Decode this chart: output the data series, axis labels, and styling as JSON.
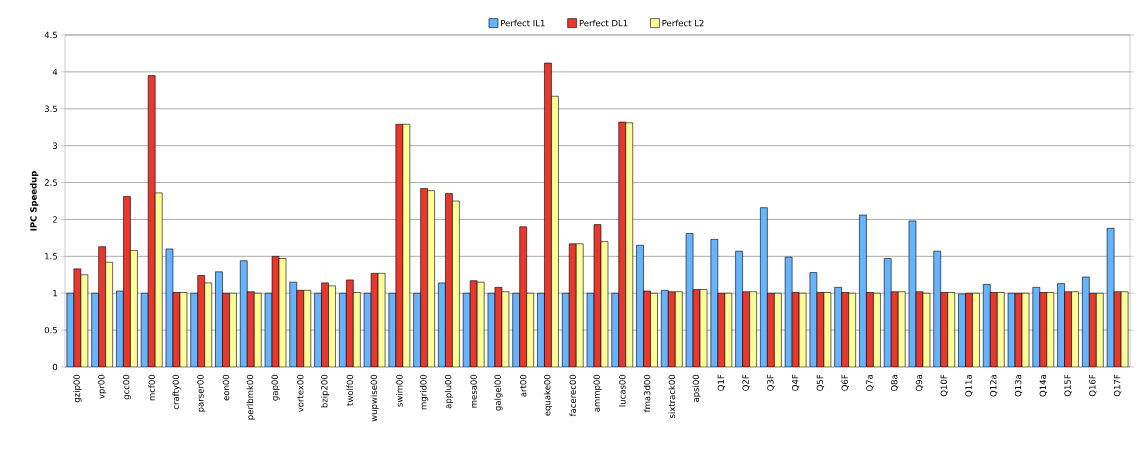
{
  "chart_data": {
    "type": "bar",
    "ylabel": "IPC Speedup",
    "categories": [
      "gzip00",
      "vpr00",
      "gcc00",
      "mcf00",
      "crafty00",
      "parser00",
      "eon00",
      "perlbmk00",
      "gap00",
      "vortex00",
      "bzip200",
      "twolf00",
      "wupwise00",
      "swim00",
      "mgrid00",
      "applu00",
      "mesa00",
      "galgel00",
      "art00",
      "equake00",
      "facerec00",
      "ammp00",
      "lucas00",
      "fma3d00",
      "sixtrack00",
      "apsi00",
      "Q1F",
      "Q2F",
      "Q3F",
      "Q4F",
      "Q5F",
      "Q6F",
      "Q7a",
      "Q8a",
      "Q9a",
      "Q10F",
      "Q11a",
      "Q12a",
      "Q13a",
      "Q14a",
      "Q15F",
      "Q16F",
      "Q17F"
    ],
    "series": [
      {
        "name": "Perfect IL1",
        "color": "#66b3ff",
        "values": [
          1,
          1,
          1.03,
          1,
          1.6,
          1,
          1.29,
          1.44,
          1,
          1.15,
          1,
          1,
          1,
          1,
          1,
          1.14,
          1,
          1,
          1,
          1,
          1,
          1,
          1,
          1.65,
          1.04,
          1.81,
          1.73,
          1.57,
          2.16,
          1.49,
          1.28,
          1.08,
          2.06,
          1.47,
          1.98,
          1.57,
          0.99,
          1.12,
          1,
          1.08,
          1.13,
          1.22,
          1.88
        ]
      },
      {
        "name": "Perfect DL1",
        "color": "#e8382e",
        "values": [
          1.33,
          1.63,
          2.31,
          3.95,
          1.01,
          1.24,
          1,
          1.02,
          1.5,
          1.04,
          1.14,
          1.18,
          1.27,
          3.29,
          2.42,
          2.35,
          1.17,
          1.08,
          1.9,
          4.12,
          1.67,
          1.93,
          3.32,
          1.03,
          1.02,
          1.05,
          1,
          1.02,
          1,
          1.01,
          1.01,
          1.01,
          1.01,
          1.02,
          1.02,
          1.01,
          1,
          1.01,
          1,
          1.01,
          1.02,
          1,
          1.02
        ]
      },
      {
        "name": "Perfect L2",
        "color": "#ffff99",
        "values": [
          1.25,
          1.42,
          1.58,
          2.36,
          1.01,
          1.14,
          1,
          1,
          1.47,
          1.04,
          1.1,
          1.01,
          1.27,
          3.29,
          2.39,
          2.25,
          1.15,
          1.02,
          1,
          3.67,
          1.67,
          1.7,
          3.31,
          1,
          1.02,
          1.05,
          1,
          1.02,
          1,
          1,
          1.01,
          1,
          1,
          1.02,
          1,
          1.01,
          1,
          1.01,
          1,
          1.01,
          1.02,
          1,
          1.02
        ]
      }
    ],
    "ylim": [
      0,
      4.5
    ],
    "yticks": [
      0,
      0.5,
      1,
      1.5,
      2,
      2.5,
      3,
      3.5,
      4,
      4.5
    ],
    "grid": "y",
    "legend": "top"
  }
}
